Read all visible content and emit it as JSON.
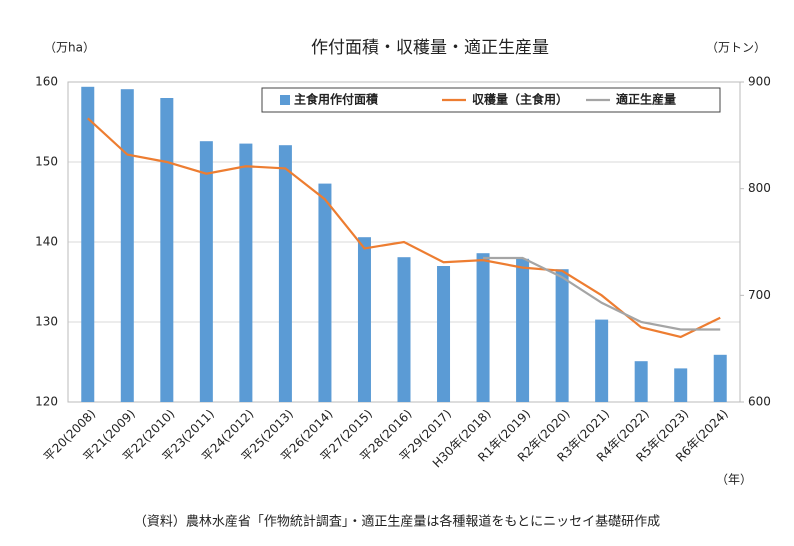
{
  "chart_data": {
    "type": "bar",
    "title": "作付面積・収穫量・適正生産量",
    "y_label": "（万ha）",
    "y2_label": "（万トン）",
    "x_label": "（年）",
    "source": "（資料）農林水産省「作物統計調査」・適正生産量は各種報道をもとにニッセイ基礎研作成",
    "categories": [
      "平20(2008)",
      "平21(2009)",
      "平22(2010)",
      "平23(2011)",
      "平24(2012)",
      "平25(2013)",
      "平26(2014)",
      "平27(2015)",
      "平28(2016)",
      "平29(2017)",
      "H30年(2018)",
      "R1年(2019)",
      "R2年(2020)",
      "R3年(2021)",
      "R4年(2022)",
      "R5年(2023)",
      "R6年(2024)"
    ],
    "series": [
      {
        "name": "主食用作付面積",
        "type": "bar",
        "color": "#5b9bd5",
        "values": [
          159.4,
          159.1,
          158.0,
          152.6,
          152.3,
          152.1,
          147.3,
          140.6,
          138.1,
          137.0,
          138.6,
          137.9,
          136.6,
          130.3,
          125.1,
          124.2,
          125.9
        ]
      },
      {
        "name": "収穫量（主食用）",
        "type": "line",
        "axis": "y2",
        "color": "#ed7d31",
        "values": [
          866,
          832,
          825,
          814,
          821,
          819,
          790,
          744,
          750,
          731,
          733,
          726,
          723,
          700,
          670,
          661,
          679
        ]
      },
      {
        "name": "適正生産量",
        "type": "line",
        "axis": "y2",
        "color": "#a5a5a5",
        "values": [
          null,
          null,
          null,
          null,
          null,
          null,
          null,
          null,
          null,
          null,
          735,
          735,
          717,
          693,
          675,
          668,
          668
        ]
      }
    ],
    "ylim": [
      120,
      160
    ],
    "yticks": [
      120,
      130,
      140,
      150,
      160
    ],
    "y2lim": [
      600,
      900
    ],
    "y2ticks": [
      600,
      700,
      800,
      900
    ],
    "grid": true,
    "legend": "top-right"
  }
}
